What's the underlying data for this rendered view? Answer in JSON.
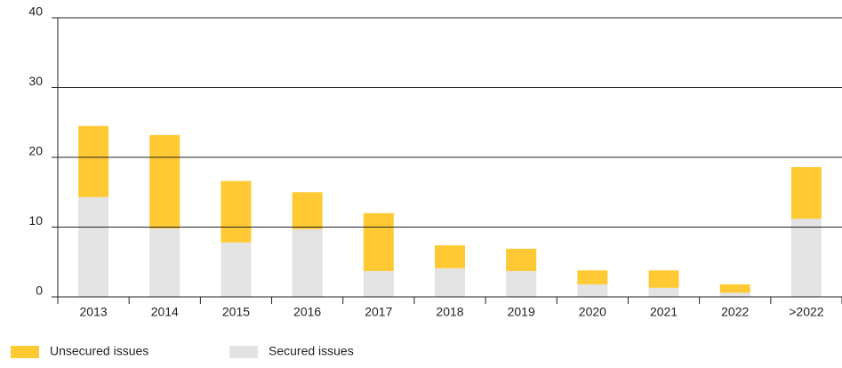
{
  "chart_data": {
    "type": "stacked_bar",
    "categories": [
      "2013",
      "2014",
      "2015",
      "2016",
      "2017",
      "2018",
      "2019",
      "2020",
      "2021",
      "2022",
      ">2022"
    ],
    "series": [
      {
        "name": "Unsecured issues",
        "color": "#ffc933",
        "values": [
          10.2,
          13.4,
          8.8,
          5.3,
          8.3,
          3.3,
          3.2,
          2.0,
          2.5,
          1.2,
          7.4
        ]
      },
      {
        "name": "Secured issues",
        "color": "#e3e3e3",
        "values": [
          14.3,
          9.8,
          7.8,
          9.7,
          3.7,
          4.1,
          3.7,
          1.8,
          1.3,
          0.6,
          11.2
        ]
      }
    ],
    "ylim": [
      0,
      40
    ],
    "yticks": [
      0,
      10,
      20,
      30,
      40
    ],
    "grid": true
  }
}
